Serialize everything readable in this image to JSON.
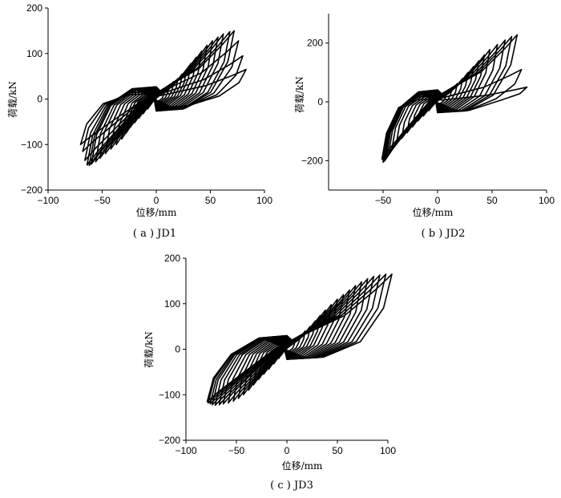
{
  "chart_data": [
    {
      "type": "line",
      "caption": "( a ) JD1",
      "xlabel": "位移/mm",
      "ylabel": "荷载/kN",
      "xlim": [
        -100,
        100
      ],
      "ylim": [
        -200,
        200
      ],
      "xticks": [
        -100,
        -50,
        0,
        50,
        100
      ],
      "yticks": [
        -200,
        -100,
        0,
        100,
        200
      ],
      "grid": false,
      "cycles": [
        {
          "amp_pos": 8,
          "amp_neg": 8,
          "peak_pos": 22,
          "peak_neg": -22
        },
        {
          "amp_pos": 12,
          "amp_neg": 12,
          "peak_pos": 30,
          "peak_neg": -32
        },
        {
          "amp_pos": 16,
          "amp_neg": 16,
          "peak_pos": 38,
          "peak_neg": -42
        },
        {
          "amp_pos": 20,
          "amp_neg": 20,
          "peak_pos": 45,
          "peak_neg": -52
        },
        {
          "amp_pos": 24,
          "amp_neg": 24,
          "peak_pos": 55,
          "peak_neg": -62
        },
        {
          "amp_pos": 28,
          "amp_neg": 28,
          "peak_pos": 65,
          "peak_neg": -75
        },
        {
          "amp_pos": 32,
          "amp_neg": 32,
          "peak_pos": 78,
          "peak_neg": -88
        },
        {
          "amp_pos": 37,
          "amp_neg": 37,
          "peak_pos": 92,
          "peak_neg": -100
        },
        {
          "amp_pos": 42,
          "amp_neg": 42,
          "peak_pos": 105,
          "peak_neg": -110
        },
        {
          "amp_pos": 47,
          "amp_neg": 47,
          "peak_pos": 118,
          "peak_neg": -120
        },
        {
          "amp_pos": 52,
          "amp_neg": 52,
          "peak_pos": 128,
          "peak_neg": -130
        },
        {
          "amp_pos": 57,
          "amp_neg": 56,
          "peak_pos": 136,
          "peak_neg": -138
        },
        {
          "amp_pos": 62,
          "amp_neg": 60,
          "peak_pos": 143,
          "peak_neg": -143
        },
        {
          "amp_pos": 68,
          "amp_neg": 62,
          "peak_pos": 148,
          "peak_neg": -146
        },
        {
          "amp_pos": 72,
          "amp_neg": 64,
          "peak_pos": 150,
          "peak_neg": -145
        },
        {
          "amp_pos": 76,
          "amp_neg": 66,
          "peak_pos": 128,
          "peak_neg": -135
        },
        {
          "amp_pos": 80,
          "amp_neg": 68,
          "peak_pos": 95,
          "peak_neg": -115
        },
        {
          "amp_pos": 83,
          "amp_neg": 70,
          "peak_pos": 65,
          "peak_neg": -100
        }
      ]
    },
    {
      "type": "line",
      "caption": "( b ) JD2",
      "xlabel": "位移/mm",
      "ylabel": "荷载/kN",
      "xlim": [
        -100,
        100
      ],
      "ylim": [
        -300,
        300
      ],
      "xticks": [
        -50,
        0,
        50,
        100
      ],
      "yticks": [
        -200,
        0,
        200
      ],
      "grid": false,
      "cycles": [
        {
          "amp_pos": 8,
          "amp_neg": 8,
          "peak_pos": 30,
          "peak_neg": -30
        },
        {
          "amp_pos": 13,
          "amp_neg": 13,
          "peak_pos": 45,
          "peak_neg": -48
        },
        {
          "amp_pos": 18,
          "amp_neg": 18,
          "peak_pos": 62,
          "peak_neg": -65
        },
        {
          "amp_pos": 23,
          "amp_neg": 23,
          "peak_pos": 80,
          "peak_neg": -85
        },
        {
          "amp_pos": 28,
          "amp_neg": 28,
          "peak_pos": 100,
          "peak_neg": -105
        },
        {
          "amp_pos": 33,
          "amp_neg": 33,
          "peak_pos": 120,
          "peak_neg": -125
        },
        {
          "amp_pos": 38,
          "amp_neg": 38,
          "peak_pos": 140,
          "peak_neg": -145
        },
        {
          "amp_pos": 43,
          "amp_neg": 42,
          "peak_pos": 160,
          "peak_neg": -162
        },
        {
          "amp_pos": 48,
          "amp_neg": 45,
          "peak_pos": 178,
          "peak_neg": -178
        },
        {
          "amp_pos": 55,
          "amp_neg": 47,
          "peak_pos": 195,
          "peak_neg": -190
        },
        {
          "amp_pos": 62,
          "amp_neg": 48,
          "peak_pos": 210,
          "peak_neg": -198
        },
        {
          "amp_pos": 68,
          "amp_neg": 49,
          "peak_pos": 222,
          "peak_neg": -202
        },
        {
          "amp_pos": 73,
          "amp_neg": 50,
          "peak_pos": 228,
          "peak_neg": -205
        },
        {
          "amp_pos": 77,
          "amp_neg": 50,
          "peak_pos": 110,
          "peak_neg": -200
        },
        {
          "amp_pos": 82,
          "amp_neg": 51,
          "peak_pos": 50,
          "peak_neg": -195
        }
      ]
    },
    {
      "type": "line",
      "caption": "( c ) JD3",
      "xlabel": "位移/mm",
      "ylabel": "荷载/kN",
      "xlim": [
        -100,
        100
      ],
      "ylim": [
        -200,
        200
      ],
      "xticks": [
        -100,
        -50,
        0,
        50,
        100
      ],
      "yticks": [
        -200,
        -100,
        0,
        100,
        200
      ],
      "grid": false,
      "cycles": [
        {
          "amp_pos": 8,
          "amp_neg": 8,
          "peak_pos": 20,
          "peak_neg": -20
        },
        {
          "amp_pos": 13,
          "amp_neg": 13,
          "peak_pos": 30,
          "peak_neg": -32
        },
        {
          "amp_pos": 18,
          "amp_neg": 18,
          "peak_pos": 40,
          "peak_neg": -44
        },
        {
          "amp_pos": 23,
          "amp_neg": 23,
          "peak_pos": 50,
          "peak_neg": -55
        },
        {
          "amp_pos": 28,
          "amp_neg": 28,
          "peak_pos": 62,
          "peak_neg": -66
        },
        {
          "amp_pos": 33,
          "amp_neg": 33,
          "peak_pos": 74,
          "peak_neg": -78
        },
        {
          "amp_pos": 38,
          "amp_neg": 38,
          "peak_pos": 86,
          "peak_neg": -90
        },
        {
          "amp_pos": 44,
          "amp_neg": 43,
          "peak_pos": 98,
          "peak_neg": -100
        },
        {
          "amp_pos": 50,
          "amp_neg": 48,
          "peak_pos": 110,
          "peak_neg": -108
        },
        {
          "amp_pos": 56,
          "amp_neg": 53,
          "peak_pos": 120,
          "peak_neg": -114
        },
        {
          "amp_pos": 62,
          "amp_neg": 58,
          "peak_pos": 130,
          "peak_neg": -118
        },
        {
          "amp_pos": 68,
          "amp_neg": 63,
          "peak_pos": 140,
          "peak_neg": -120
        },
        {
          "amp_pos": 74,
          "amp_neg": 67,
          "peak_pos": 148,
          "peak_neg": -122
        },
        {
          "amp_pos": 80,
          "amp_neg": 71,
          "peak_pos": 155,
          "peak_neg": -123
        },
        {
          "amp_pos": 86,
          "amp_neg": 74,
          "peak_pos": 160,
          "peak_neg": -122
        },
        {
          "amp_pos": 92,
          "amp_neg": 76,
          "peak_pos": 163,
          "peak_neg": -120
        },
        {
          "amp_pos": 98,
          "amp_neg": 78,
          "peak_pos": 165,
          "peak_neg": -118
        },
        {
          "amp_pos": 104,
          "amp_neg": 79,
          "peak_pos": 165,
          "peak_neg": -115
        }
      ]
    }
  ]
}
